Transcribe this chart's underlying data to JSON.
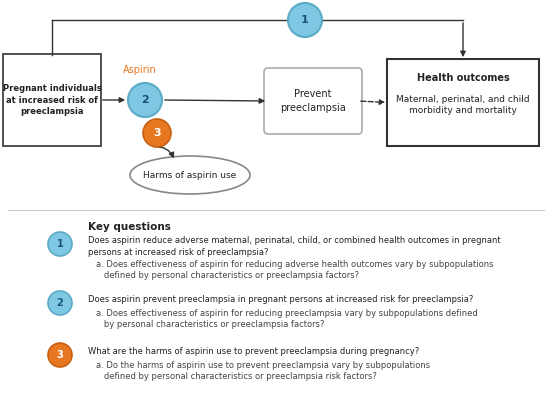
{
  "fig_width": 5.52,
  "fig_height": 4.11,
  "dpi": 100,
  "bg_color": "#ffffff",
  "circle1_color": "#7ec8e3",
  "circle2_color": "#7ec8e3",
  "circle3_color": "#e87722",
  "circle_edge_color": "#5aaac8",
  "circle3_edge_color": "#c86010",
  "text_dark": "#222222",
  "text_sub": "#444444",
  "text_orange": "#e87722",
  "arrow_color": "#333333",
  "box_light_edge": "#aaaaaa",
  "box_dark_edge": "#333333",
  "sep_color": "#cccccc",
  "key_questions_title": "Key questions",
  "kq1_main_line1": "Does aspirin reduce adverse maternal, perinatal, child, or combined health outcomes in pregnant",
  "kq1_main_line2": "persons at increased risk of preeclampsia?",
  "kq1_sub_line1": "a. Does effectiveness of aspirin for reducing adverse health outcomes vary by subpopulations",
  "kq1_sub_line2": "   defined by personal characteristics or preeclampsia factors?",
  "kq2_main_line1": "Does aspirin prevent preeclampsia in pregnant persons at increased risk for preeclampsia?",
  "kq2_sub_line1": "a. Does effectiveness of aspirin for reducing preeclampsia vary by subpopulations defined",
  "kq2_sub_line2": "   by personal characteristics or preeclampsia factors?",
  "kq3_main_line1": "What are the harms of aspirin use to prevent preeclampsia during pregnancy?",
  "kq3_sub_line1": "a. Do the harms of aspirin use to prevent preeclampsia vary by subpopulations",
  "kq3_sub_line2": "   defined by personal characteristics or preeclampsia risk factors?"
}
